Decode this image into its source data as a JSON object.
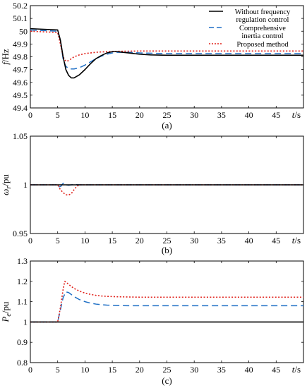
{
  "colors": {
    "without": "#000000",
    "comprehensive": "#1f6fc5",
    "proposed": "#e0201a"
  },
  "chart_data": [
    {
      "type": "line",
      "caption": "(a)",
      "ylabel_main": "f",
      "ylabel_unit": "/Hz",
      "xlabel_main": "t",
      "xlabel_unit": "/s",
      "xlim": [
        0,
        50
      ],
      "ylim": [
        49.4,
        50.2
      ],
      "x_ticks": [
        0,
        5,
        10,
        15,
        20,
        25,
        30,
        35,
        40,
        45
      ],
      "y_ticks": [
        49.4,
        49.5,
        49.6,
        49.7,
        49.8,
        49.9,
        50,
        50.1,
        50.2
      ],
      "y_tick_labels": [
        "49.4",
        "49.5",
        "49.6",
        "49.7",
        "49.8",
        "49.9",
        "50",
        "50.1",
        "50.2"
      ],
      "legend": {
        "placement": "top-right",
        "entries": [
          {
            "series": "without",
            "lines": [
              "Without frequency",
              "regulation control"
            ]
          },
          {
            "series": "comprehensive",
            "lines": [
              "Comprehensive",
              "inertia control"
            ]
          },
          {
            "series": "proposed",
            "lines": [
              "Proposed method"
            ]
          }
        ]
      },
      "series": [
        {
          "key": "without",
          "style": "solid",
          "x": [
            0,
            5,
            5.5,
            6,
            6.5,
            7,
            7.5,
            8,
            9,
            10,
            11,
            12,
            13,
            14,
            15,
            16,
            17,
            18,
            20,
            22,
            25,
            30,
            35,
            40,
            45,
            50
          ],
          "y": [
            50.02,
            50.01,
            49.93,
            49.8,
            49.7,
            49.655,
            49.635,
            49.635,
            49.66,
            49.7,
            49.745,
            49.785,
            49.81,
            49.83,
            49.84,
            49.84,
            49.835,
            49.83,
            49.82,
            49.815,
            49.812,
            49.812,
            49.812,
            49.812,
            49.812,
            49.812
          ]
        },
        {
          "key": "comprehensive",
          "style": "dash",
          "x": [
            0,
            5,
            5.5,
            6,
            6.5,
            7,
            7.5,
            8,
            9,
            10,
            11,
            12,
            13,
            14,
            15,
            16,
            18,
            20,
            25,
            30,
            40,
            50
          ],
          "y": [
            50.01,
            50.0,
            49.93,
            49.78,
            49.725,
            49.71,
            49.705,
            49.705,
            49.715,
            49.735,
            49.76,
            49.785,
            49.805,
            49.82,
            49.83,
            49.835,
            49.835,
            49.83,
            49.825,
            49.825,
            49.825,
            49.825
          ]
        },
        {
          "key": "proposed",
          "style": "dot",
          "x": [
            0,
            5,
            5.5,
            6,
            6.5,
            7,
            7.5,
            8,
            9,
            10,
            11,
            12,
            13,
            14,
            15,
            16,
            18,
            20,
            25,
            30,
            40,
            50
          ],
          "y": [
            50.0,
            49.99,
            49.9,
            49.8,
            49.765,
            49.77,
            49.785,
            49.8,
            49.815,
            49.825,
            49.83,
            49.835,
            49.838,
            49.84,
            49.842,
            49.843,
            49.844,
            49.845,
            49.845,
            49.845,
            49.845,
            49.845
          ]
        }
      ]
    },
    {
      "type": "line",
      "caption": "(b)",
      "ylabel_main": "ω",
      "ylabel_sub": "r",
      "ylabel_unit": "/pu",
      "xlabel_main": "t",
      "xlabel_unit": "/s",
      "xlim": [
        0,
        50
      ],
      "ylim": [
        0.95,
        1.05
      ],
      "x_ticks": [
        0,
        5,
        10,
        15,
        20,
        25,
        30,
        35,
        40,
        45
      ],
      "y_ticks": [
        0.95,
        1,
        1.05
      ],
      "y_tick_labels": [
        "0.95",
        "1",
        "1.05"
      ],
      "series": [
        {
          "key": "without",
          "style": "solid",
          "x": [
            0,
            50
          ],
          "y": [
            1.0,
            1.0
          ]
        },
        {
          "key": "comprehensive",
          "style": "dash",
          "x": [
            0,
            5,
            5.3,
            5.6,
            5.9,
            6.2,
            6.5,
            7,
            7.5,
            8,
            9,
            10,
            50
          ],
          "y": [
            1.0,
            1.0,
            0.998,
            0.9985,
            1.001,
            1.002,
            1.0,
            0.9995,
            1.0,
            1.0003,
            1.0,
            1.0,
            1.0
          ]
        },
        {
          "key": "proposed",
          "style": "dot",
          "x": [
            0,
            5,
            5.5,
            6,
            6.5,
            7,
            7.5,
            8,
            8.5,
            9,
            10,
            50
          ],
          "y": [
            1.0,
            1.0,
            0.995,
            0.992,
            0.9898,
            0.9895,
            0.991,
            0.995,
            0.9985,
            1.0,
            1.0,
            1.0
          ]
        }
      ]
    },
    {
      "type": "line",
      "caption": "(c)",
      "ylabel_main": "P",
      "ylabel_sub": "e",
      "ylabel_unit": "/pu",
      "xlabel_main": "t",
      "xlabel_unit": "/s",
      "xlim": [
        0,
        50
      ],
      "ylim": [
        0.8,
        1.3
      ],
      "x_ticks": [
        0,
        5,
        10,
        15,
        20,
        25,
        30,
        35,
        40,
        45
      ],
      "y_ticks": [
        0.8,
        0.9,
        1,
        1.1,
        1.2,
        1.3
      ],
      "y_tick_labels": [
        "0.8",
        "0.9",
        "1",
        "1.1",
        "1.2",
        "1.3"
      ],
      "series": [
        {
          "key": "without",
          "style": "solid",
          "x": [
            0,
            50
          ],
          "y": [
            1.0,
            1.0
          ]
        },
        {
          "key": "comprehensive",
          "style": "dash",
          "x": [
            0,
            5,
            5.5,
            6,
            6.5,
            7,
            7.5,
            8,
            9,
            10,
            11,
            12,
            13,
            14,
            15,
            16,
            18,
            20,
            25,
            30,
            40,
            50
          ],
          "y": [
            1.0,
            1.0,
            1.06,
            1.12,
            1.148,
            1.145,
            1.135,
            1.125,
            1.11,
            1.1,
            1.093,
            1.088,
            1.085,
            1.083,
            1.082,
            1.081,
            1.08,
            1.08,
            1.08,
            1.08,
            1.08,
            1.08
          ]
        },
        {
          "key": "proposed",
          "style": "dot",
          "x": [
            0,
            5,
            5.5,
            6,
            6.3,
            6.6,
            7,
            7.5,
            8,
            9,
            10,
            11,
            12,
            13,
            14,
            15,
            16,
            18,
            20,
            25,
            30,
            40,
            50
          ],
          "y": [
            1.0,
            1.0,
            1.07,
            1.16,
            1.2,
            1.195,
            1.185,
            1.175,
            1.165,
            1.152,
            1.142,
            1.136,
            1.131,
            1.128,
            1.126,
            1.125,
            1.124,
            1.123,
            1.122,
            1.122,
            1.122,
            1.122,
            1.122
          ]
        }
      ]
    }
  ]
}
